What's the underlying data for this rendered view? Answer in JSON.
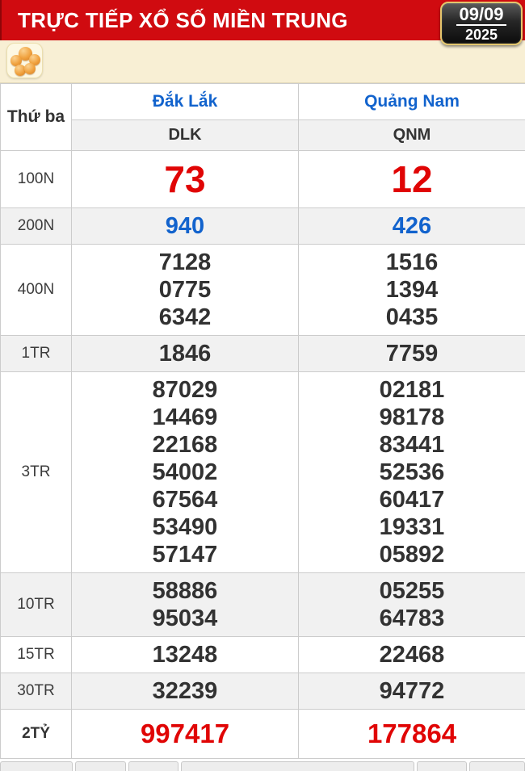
{
  "header": {
    "title": "TRỰC TIẾP XỔ SỐ MIỀN TRUNG",
    "date": {
      "day_month": "09/09",
      "year": "2025"
    }
  },
  "toolbar": {
    "balls_icon": "lottery-balls-icon"
  },
  "results": {
    "weekday": "Thứ ba",
    "stations": [
      {
        "name": "Đắk Lắk",
        "code": "DLK"
      },
      {
        "name": "Quảng Nam",
        "code": "QNM"
      }
    ],
    "rows": [
      {
        "tier": "100N",
        "style": "first-red",
        "values": [
          [
            "73"
          ],
          [
            "12"
          ]
        ]
      },
      {
        "tier": "200N",
        "style": "blue",
        "values": [
          [
            "940"
          ],
          [
            "426"
          ]
        ]
      },
      {
        "tier": "400N",
        "style": "normal",
        "values": [
          [
            "7128",
            "0775",
            "6342"
          ],
          [
            "1516",
            "1394",
            "0435"
          ]
        ]
      },
      {
        "tier": "1TR",
        "style": "normal",
        "values": [
          [
            "1846"
          ],
          [
            "7759"
          ]
        ]
      },
      {
        "tier": "3TR",
        "style": "normal",
        "values": [
          [
            "87029",
            "14469",
            "22168",
            "54002",
            "67564",
            "53490",
            "57147"
          ],
          [
            "02181",
            "98178",
            "83441",
            "52536",
            "60417",
            "19331",
            "05892"
          ]
        ]
      },
      {
        "tier": "10TR",
        "style": "normal",
        "values": [
          [
            "58886",
            "95034"
          ],
          [
            "05255",
            "64783"
          ]
        ]
      },
      {
        "tier": "15TR",
        "style": "normal",
        "values": [
          [
            "13248"
          ],
          [
            "22468"
          ]
        ]
      },
      {
        "tier": "30TR",
        "style": "normal",
        "values": [
          [
            "32239"
          ],
          [
            "94772"
          ]
        ]
      },
      {
        "tier": "2TỶ",
        "style": "special-red",
        "values": [
          [
            "997417"
          ],
          [
            "177864"
          ]
        ]
      }
    ]
  },
  "colors": {
    "header_red": "#d00b10",
    "number_red": "#e00505",
    "link_blue": "#1263cd",
    "toolbar_beige": "#f8efd4",
    "zebra_gray": "#f1f1f1"
  }
}
